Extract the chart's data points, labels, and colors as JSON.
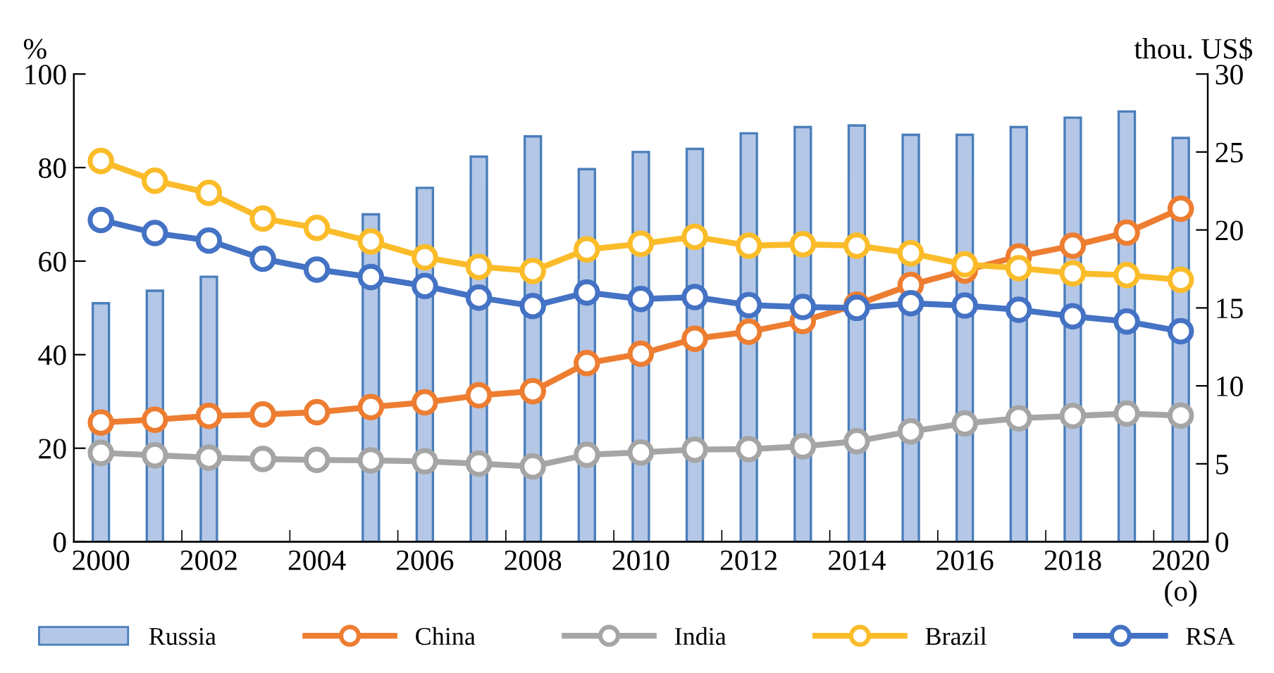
{
  "chart_data": {
    "type": "line",
    "categories": [
      "2000",
      null,
      "2002",
      null,
      "2004",
      null,
      "2006",
      null,
      "2008",
      null,
      "2010",
      null,
      "2012",
      null,
      "2014",
      null,
      "2016",
      null,
      "2018",
      null,
      "2020\n(o)"
    ],
    "ylabel": "%",
    "y2label": "thou. US$",
    "ylim": [
      0,
      100
    ],
    "yticks": [
      0,
      20,
      40,
      60,
      80,
      100
    ],
    "y2lim": [
      0,
      30
    ],
    "y2ticks": [
      0,
      5,
      10,
      15,
      20,
      25,
      30
    ],
    "marker": "circle",
    "line_style": "solid",
    "grid": false,
    "legend": "bottom",
    "series": [
      {
        "name": "Russia",
        "type": "bar",
        "axis": "y2",
        "color": "#b4c7e7",
        "values": [
          15.3,
          16.1,
          17.0,
          null,
          null,
          21.0,
          22.7,
          24.7,
          26.0,
          23.9,
          25.0,
          25.2,
          26.2,
          26.6,
          26.7,
          26.1,
          26.1,
          26.6,
          27.2,
          27.6,
          25.9
        ]
      },
      {
        "name": "China",
        "color": "#ed7d31",
        "values": [
          25.5,
          26.1,
          26.9,
          27.2,
          27.7,
          28.8,
          29.8,
          31.3,
          32.2,
          38.2,
          40.2,
          43.4,
          44.9,
          47.2,
          50.7,
          54.9,
          58.0,
          61.0,
          63.3,
          66.1,
          71.2
        ]
      },
      {
        "name": "India",
        "color": "#a5a5a5",
        "values": [
          19.0,
          18.5,
          18.0,
          17.7,
          17.5,
          17.4,
          17.2,
          16.7,
          16.1,
          18.6,
          19.1,
          19.7,
          19.8,
          20.4,
          21.5,
          23.6,
          25.3,
          26.4,
          26.9,
          27.4,
          27.0
        ]
      },
      {
        "name": "Brazil",
        "color": "#fbbc2a",
        "values": [
          81.4,
          77.2,
          74.6,
          69.1,
          67.1,
          64.2,
          60.8,
          58.8,
          57.9,
          62.5,
          63.7,
          65.2,
          63.3,
          63.6,
          63.3,
          61.7,
          59.3,
          58.5,
          57.4,
          57.0,
          56.0
        ]
      },
      {
        "name": "RSA",
        "color": "#4472c4",
        "values": [
          68.8,
          66.0,
          64.4,
          60.5,
          58.2,
          56.6,
          54.7,
          52.2,
          50.4,
          53.3,
          51.9,
          52.3,
          50.6,
          50.2,
          50.0,
          51.0,
          50.5,
          49.6,
          48.2,
          47.1,
          45.0
        ]
      }
    ]
  }
}
